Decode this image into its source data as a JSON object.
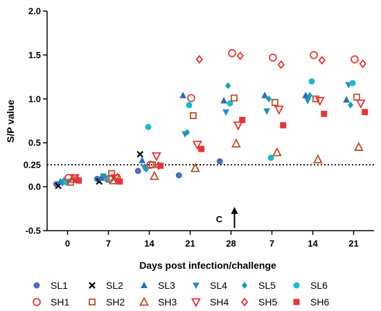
{
  "chart_data": {
    "type": "scatter",
    "title": "",
    "xlabel": "Days post infection/challenge",
    "ylabel": "S/P value",
    "categories": [
      "0",
      "7",
      "14",
      "21",
      "28",
      "7",
      "14",
      "21"
    ],
    "ylim": [
      -0.5,
      2.0
    ],
    "yticks": [
      "-0.5",
      "0.0",
      "0.5",
      "1.0",
      "1.5",
      "2.0"
    ],
    "cutoff": {
      "value": 0.25,
      "label": "0.25"
    },
    "annotation": {
      "text": "C",
      "category_index": 4,
      "arrow_from": -0.47,
      "arrow_to": -0.23
    },
    "grid": false,
    "legend_position": "bottom",
    "series": [
      {
        "name": "SL1",
        "marker": "circle-filled",
        "color": "#4a6fb5",
        "values": [
          0.03,
          0.09,
          0.18,
          0.13,
          0.29,
          null,
          null,
          null
        ]
      },
      {
        "name": "SL2",
        "marker": "cross",
        "color": "#000000",
        "values": [
          0.01,
          0.06,
          0.37,
          null,
          null,
          null,
          null,
          null
        ]
      },
      {
        "name": "SL3",
        "marker": "triangle-up",
        "color": "#2f6db5",
        "values": [
          0.06,
          0.1,
          0.3,
          1.04,
          0.98,
          1.04,
          1.04,
          0.99
        ]
      },
      {
        "name": "SL4",
        "marker": "triangle-down",
        "color": "#2a8fc0",
        "values": [
          0.04,
          0.12,
          0.22,
          0.6,
          0.85,
          0.86,
          0.98,
          1.16
        ]
      },
      {
        "name": "SL5",
        "marker": "diamond-filled",
        "color": "#1b9fb0",
        "values": [
          0.08,
          0.11,
          0.2,
          0.62,
          1.15,
          1.0,
          1.04,
          0.93
        ]
      },
      {
        "name": "SL6",
        "marker": "circle-filled",
        "color": "#1fb8c8",
        "values": [
          0.05,
          0.08,
          0.68,
          0.93,
          0.95,
          0.33,
          1.2,
          1.18
        ]
      },
      {
        "name": "SH1",
        "marker": "circle-open",
        "color": "#e14a4a",
        "values": [
          0.1,
          0.09,
          0.25,
          1.01,
          1.52,
          1.47,
          1.5,
          1.45
        ]
      },
      {
        "name": "SH2",
        "marker": "square-open",
        "color": "#b5502f",
        "values": [
          0.05,
          0.15,
          0.25,
          0.81,
          1.01,
          0.96,
          1.0,
          1.02
        ]
      },
      {
        "name": "SH3",
        "marker": "triangle-up-open",
        "color": "#b5502f",
        "values": [
          0.09,
          0.07,
          0.12,
          0.21,
          0.49,
          0.39,
          0.31,
          0.45
        ]
      },
      {
        "name": "SH4",
        "marker": "triangle-down-open",
        "color": "#e03030",
        "values": [
          0.1,
          0.1,
          0.35,
          0.48,
          0.7,
          0.88,
          0.98,
          0.95
        ]
      },
      {
        "name": "SH5",
        "marker": "diamond-open",
        "color": "#e03030",
        "values": [
          0.09,
          0.11,
          0.24,
          1.45,
          1.49,
          1.39,
          1.44,
          1.4
        ]
      },
      {
        "name": "SH6",
        "marker": "square-filled",
        "color": "#e03838",
        "values": [
          0.07,
          0.06,
          0.24,
          0.43,
          0.76,
          0.7,
          0.83,
          0.85
        ]
      }
    ]
  }
}
